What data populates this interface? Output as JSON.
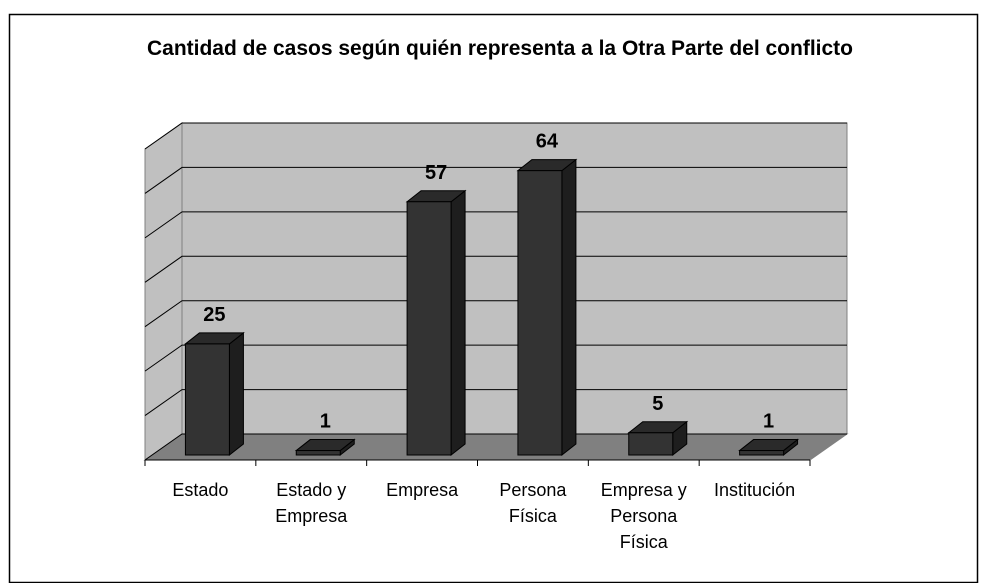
{
  "chart_data": {
    "type": "bar",
    "title": "Cantidad de casos según quién representa a la Otra Parte del conflicto",
    "categories": [
      "Estado",
      "Estado y Empresa",
      "Empresa",
      "Persona Física",
      "Empresa y Persona Física",
      "Institución"
    ],
    "values": [
      25,
      1,
      57,
      64,
      5,
      1
    ],
    "color": "#333333",
    "ylim": [
      0,
      70
    ],
    "yticks": [
      0,
      10,
      20,
      30,
      40,
      50,
      60,
      70
    ],
    "grid": true
  }
}
